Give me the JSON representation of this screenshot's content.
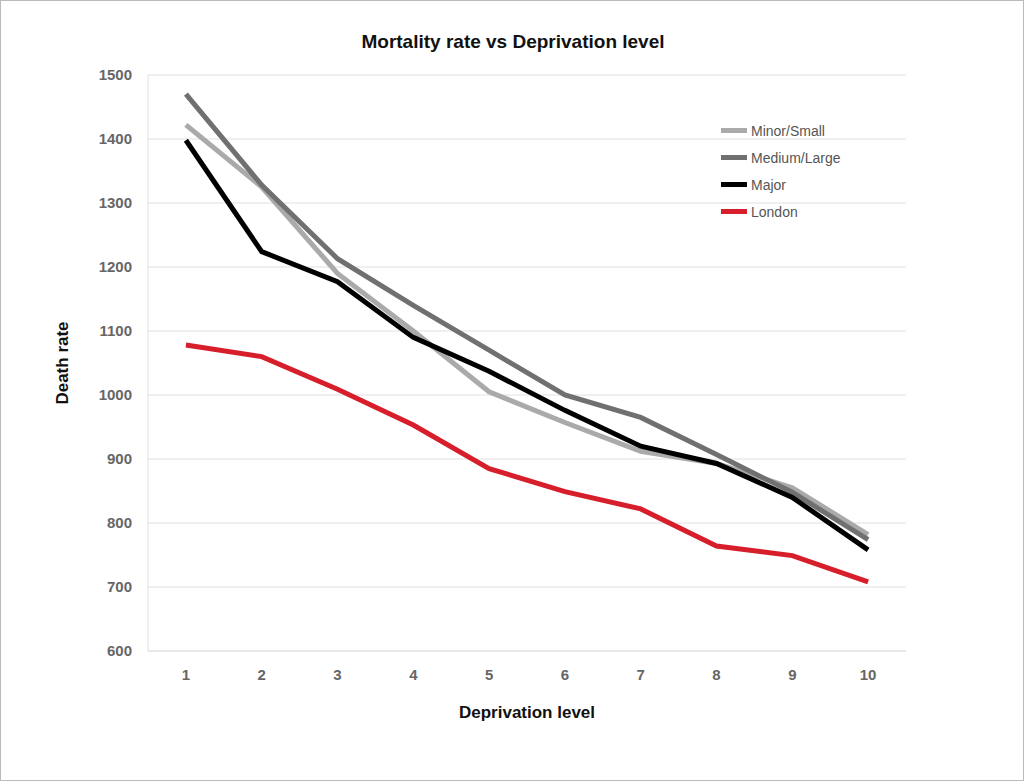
{
  "chart_data": {
    "type": "line",
    "title": "Mortality rate vs Deprivation level",
    "x_label": "Deprivation level",
    "y_label": "Death rate",
    "categories": [
      "1",
      "2",
      "3",
      "4",
      "5",
      "6",
      "7",
      "8",
      "9",
      "10"
    ],
    "series": [
      {
        "name": "Minor/Small",
        "color": "#aaaaaa",
        "values": [
          1422,
          1325,
          1190,
          1100,
          1005,
          957,
          912,
          893,
          855,
          782
        ]
      },
      {
        "name": "Medium/Large",
        "color": "#707070",
        "values": [
          1470,
          1328,
          1213,
          1140,
          1070,
          1000,
          965,
          907,
          848,
          774
        ]
      },
      {
        "name": "Major",
        "color": "#000000",
        "values": [
          1398,
          1224,
          1177,
          1090,
          1037,
          976,
          920,
          893,
          840,
          758
        ]
      },
      {
        "name": "London",
        "color": "#d71f2b",
        "values": [
          1078,
          1060,
          1009,
          953,
          885,
          849,
          822,
          764,
          749,
          708
        ]
      }
    ],
    "ylim": [
      600,
      1500
    ],
    "yticks": [
      600,
      700,
      800,
      900,
      1000,
      1100,
      1200,
      1300,
      1400,
      1500
    ],
    "grid": true,
    "legend": "top-right"
  }
}
